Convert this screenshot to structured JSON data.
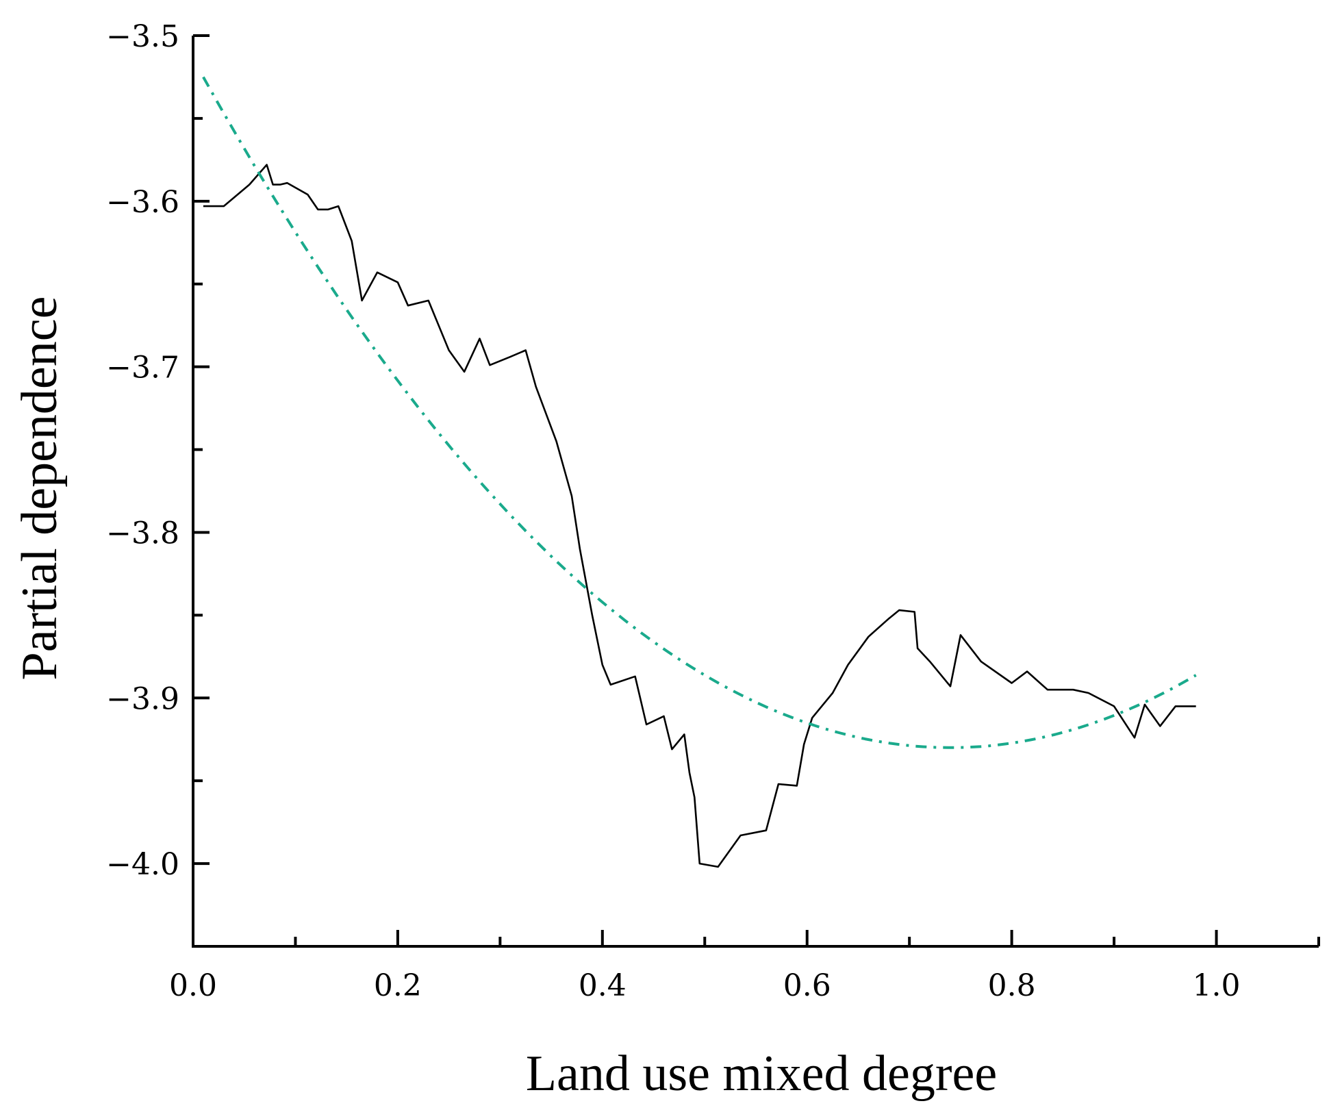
{
  "chart_data": {
    "type": "line",
    "xlabel": "Land use mixed degree",
    "ylabel": "Partial dependence",
    "xlim": [
      0.0,
      1.1
    ],
    "ylim": [
      -4.05,
      -3.5
    ],
    "x_ticks": [
      "0.0",
      "0.2",
      "0.4",
      "0.6",
      "0.8",
      "1.0"
    ],
    "x_tick_values": [
      0.0,
      0.2,
      0.4,
      0.6,
      0.8,
      1.0
    ],
    "y_ticks": [
      "-3.5",
      "-3.6",
      "-3.7",
      "-3.8",
      "-3.9",
      "-4.0"
    ],
    "y_tick_values": [
      -3.5,
      -3.6,
      -3.7,
      -3.8,
      -3.9,
      -4.0
    ],
    "grid": false,
    "series": [
      {
        "style": "solid",
        "color": "#000000",
        "points": [
          [
            0.01,
            -3.603
          ],
          [
            0.03,
            -3.603
          ],
          [
            0.055,
            -3.59
          ],
          [
            0.072,
            -3.578
          ],
          [
            0.078,
            -3.59
          ],
          [
            0.085,
            -3.59
          ],
          [
            0.092,
            -3.589
          ],
          [
            0.112,
            -3.596
          ],
          [
            0.122,
            -3.605
          ],
          [
            0.132,
            -3.605
          ],
          [
            0.142,
            -3.603
          ],
          [
            0.155,
            -3.624
          ],
          [
            0.165,
            -3.66
          ],
          [
            0.18,
            -3.643
          ],
          [
            0.2,
            -3.649
          ],
          [
            0.21,
            -3.663
          ],
          [
            0.23,
            -3.66
          ],
          [
            0.25,
            -3.69
          ],
          [
            0.265,
            -3.703
          ],
          [
            0.28,
            -3.683
          ],
          [
            0.29,
            -3.699
          ],
          [
            0.31,
            -3.694
          ],
          [
            0.325,
            -3.69
          ],
          [
            0.335,
            -3.712
          ],
          [
            0.355,
            -3.745
          ],
          [
            0.37,
            -3.778
          ],
          [
            0.378,
            -3.81
          ],
          [
            0.39,
            -3.85
          ],
          [
            0.4,
            -3.88
          ],
          [
            0.408,
            -3.892
          ],
          [
            0.432,
            -3.887
          ],
          [
            0.443,
            -3.916
          ],
          [
            0.46,
            -3.911
          ],
          [
            0.468,
            -3.931
          ],
          [
            0.48,
            -3.922
          ],
          [
            0.485,
            -3.945
          ],
          [
            0.49,
            -3.96
          ],
          [
            0.495,
            -4.0
          ],
          [
            0.513,
            -4.002
          ],
          [
            0.535,
            -3.983
          ],
          [
            0.56,
            -3.98
          ],
          [
            0.572,
            -3.952
          ],
          [
            0.59,
            -3.953
          ],
          [
            0.597,
            -3.928
          ],
          [
            0.605,
            -3.912
          ],
          [
            0.625,
            -3.897
          ],
          [
            0.64,
            -3.88
          ],
          [
            0.66,
            -3.863
          ],
          [
            0.68,
            -3.852
          ],
          [
            0.69,
            -3.847
          ],
          [
            0.705,
            -3.848
          ],
          [
            0.708,
            -3.87
          ],
          [
            0.72,
            -3.878
          ],
          [
            0.74,
            -3.893
          ],
          [
            0.75,
            -3.862
          ],
          [
            0.77,
            -3.878
          ],
          [
            0.8,
            -3.891
          ],
          [
            0.815,
            -3.884
          ],
          [
            0.835,
            -3.895
          ],
          [
            0.86,
            -3.895
          ],
          [
            0.875,
            -3.897
          ],
          [
            0.9,
            -3.905
          ],
          [
            0.92,
            -3.924
          ],
          [
            0.93,
            -3.904
          ],
          [
            0.945,
            -3.917
          ],
          [
            0.96,
            -3.905
          ],
          [
            0.98,
            -3.905
          ]
        ]
      },
      {
        "style": "dash-dot",
        "color": "#1aaa8c",
        "fit": "quadratic",
        "vertex": [
          0.74,
          -3.93
        ],
        "points": [
          [
            0.01,
            -3.525
          ],
          [
            0.74,
            -3.93
          ],
          [
            0.98,
            -3.86
          ]
        ]
      }
    ]
  }
}
